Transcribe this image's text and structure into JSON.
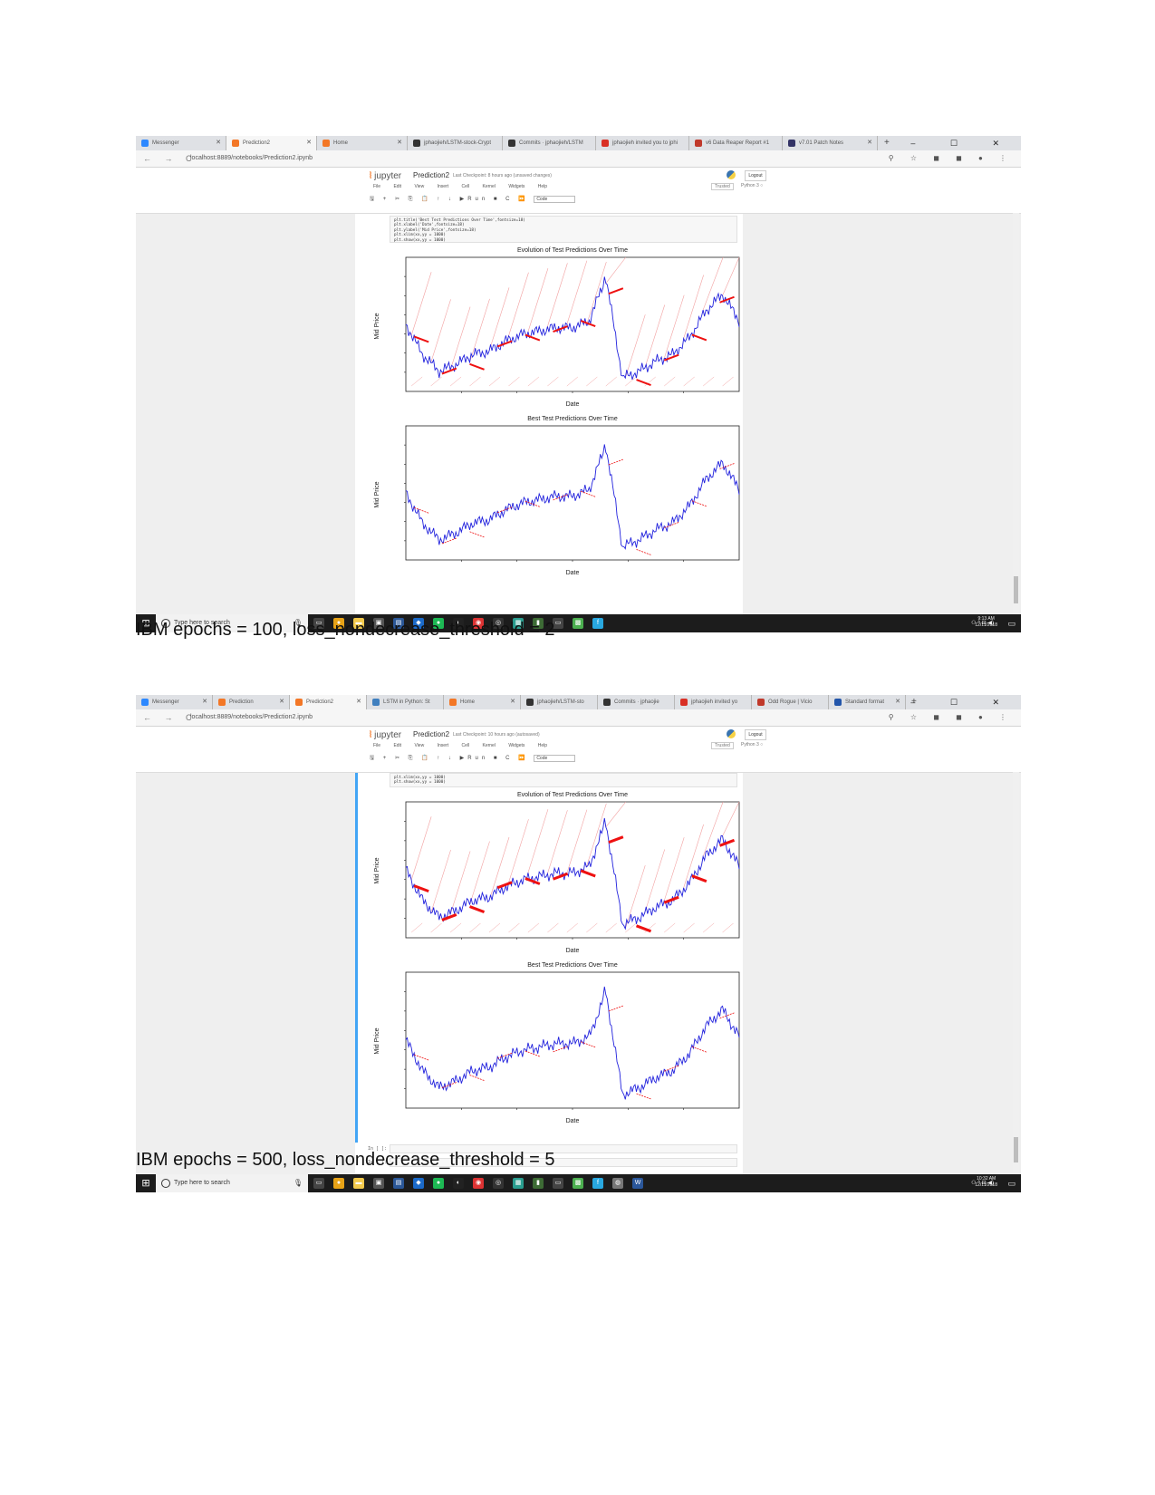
{
  "shot1": {
    "tabs": [
      {
        "label": "Messenger",
        "color": "#2d88ff"
      },
      {
        "label": "Prediction2",
        "color": "#f37726",
        "active": true
      },
      {
        "label": "Home",
        "color": "#f37726"
      },
      {
        "label": "jphaojieh/LSTM-stock-Crypt",
        "color": "#333333"
      },
      {
        "label": "Commits · jphaojieh/LSTM",
        "color": "#333333"
      },
      {
        "label": "jphaojieh invited you to jphi",
        "color": "#d93025"
      },
      {
        "label": "v6 Data Reaper Report #1",
        "color": "#c0392b"
      },
      {
        "label": "v7.01 Patch Notes",
        "color": "#333366"
      }
    ],
    "new_tab": "+",
    "window_controls": "–  ☐  ✕",
    "nav": "← → C",
    "url": "localhost:8889/notebooks/Prediction2.ipynb",
    "extensions": "⚲ ☆ ◼ ◼ ● ⋮",
    "logo": "jupyter",
    "notebook_title": "Prediction2",
    "checkpoint": "Last Checkpoint: 8 hours ago  (unsaved changes)",
    "logout": "Logout",
    "menu": "File Edit View Insert Cell Kernel Widgets Help",
    "trusted": "Trusted",
    "kernel": "Python 3 ○",
    "toolbar": "🖫 + ✂ ⎘ 📋 ↑ ↓ ▶Run ■ C ⏩",
    "cell_type": "Code",
    "code": "plt.title('Best Test Predictions Over Time',fontsize=18)\nplt.xlabel('Date',fontsize=18)\nplt.ylabel('Mid Price',fontsize=18)\nplt.xlim(xx,yy = 1000)\nplt.show(xx,yy = 1000)",
    "chart1_title": "Evolution of Test Predictions Over Time",
    "chart2_title": "Best Test Predictions Over Time",
    "xlabel": "Date",
    "ylabel": "Mid Price",
    "taskbar": {
      "search": "Type here to search",
      "time": "9:13 AM",
      "date": "12/11/2018"
    }
  },
  "caption1": "IBM epochs = 100, loss_nondecrease_threshold = 2",
  "shot2": {
    "tabs": [
      {
        "label": "Messenger",
        "color": "#2d88ff"
      },
      {
        "label": "Prediction",
        "color": "#f37726"
      },
      {
        "label": "Prediction2",
        "color": "#f37726",
        "active": true
      },
      {
        "label": "LSTM in Python: St",
        "color": "#3f7fbf"
      },
      {
        "label": "Home",
        "color": "#f37726"
      },
      {
        "label": "jphaojieh/LSTM-sto",
        "color": "#333333"
      },
      {
        "label": "Commits · jphaojie",
        "color": "#333333"
      },
      {
        "label": "jphaojieh invited yo",
        "color": "#d93025"
      },
      {
        "label": "Odd Rogue | Vicio",
        "color": "#c0392b"
      },
      {
        "label": "Standard format",
        "color": "#2255aa"
      }
    ],
    "new_tab": "+",
    "window_controls": "–  ☐  ✕",
    "nav": "← → C",
    "url": "localhost:8889/notebooks/Prediction2.ipynb",
    "extensions": "⚲ ☆ ◼ ◼ ● ⋮",
    "logo": "jupyter",
    "notebook_title": "Prediction2",
    "checkpoint": "Last Checkpoint: 10 hours ago  (autosaved)",
    "logout": "Logout",
    "menu": "File Edit View Insert Cell Kernel Widgets Help",
    "trusted": "Trusted",
    "kernel": "Python 3 ○",
    "toolbar": "🖫 + ✂ ⎘ 📋 ↑ ↓ ▶Run ■ C ⏩",
    "cell_type": "Code",
    "code": "plt.xlim(xx,yy = 1000)\nplt.show(xx,yy = 1000)",
    "chart1_title": "Evolution of Test Predictions Over Time",
    "chart2_title": "Best Test Predictions Over Time",
    "xlabel": "Date",
    "ylabel": "Mid Price",
    "empty_cell_prompt": "In [ ]:",
    "taskbar": {
      "search": "Type here to search",
      "time": "10:32 AM",
      "date": "12/11/2018"
    }
  },
  "caption2": "IBM epochs = 500, loss_nondecrease_threshold = 5",
  "colors": {
    "actual": "#2222dd",
    "prediction": "#ee1111",
    "faint_prediction": "#f2a0a0"
  },
  "chart_data": [
    {
      "type": "line",
      "title": "Evolution of Test Predictions Over Time",
      "xlabel": "Date",
      "ylabel": "Mid Price",
      "note": "IBM epochs = 100",
      "series": [
        {
          "name": "",
          "x": [
            0,
            25,
            50,
            75,
            100,
            125,
            150,
            175,
            200,
            225,
            250,
            275,
            300,
            325,
            350,
            375,
            400,
            425,
            450,
            475,
            500
          ],
          "values": [
            0.64,
            0.55,
            0.5,
            0.52,
            0.55,
            0.56,
            0.59,
            0.61,
            0.62,
            0.63,
            0.63,
            0.65,
            0.78,
            0.48,
            0.5,
            0.53,
            0.55,
            0.6,
            0.68,
            0.73,
            0.65
          ]
        }
      ]
    },
    {
      "type": "line",
      "title": "Best Test Predictions Over Time",
      "xlabel": "Date",
      "ylabel": "Mid Price",
      "note": "IBM epochs = 100",
      "series": [
        {
          "name": "",
          "x": [
            0,
            25,
            50,
            75,
            100,
            125,
            150,
            175,
            200,
            225,
            250,
            275,
            300,
            325,
            350,
            375,
            400,
            425,
            450,
            475,
            500
          ],
          "values": [
            0.64,
            0.55,
            0.5,
            0.52,
            0.55,
            0.56,
            0.59,
            0.61,
            0.62,
            0.63,
            0.63,
            0.65,
            0.78,
            0.48,
            0.5,
            0.53,
            0.55,
            0.6,
            0.68,
            0.73,
            0.65
          ]
        }
      ]
    },
    {
      "type": "line",
      "title": "Evolution of Test Predictions Over Time",
      "xlabel": "Date",
      "ylabel": "Mid Price",
      "note": "IBM epochs = 500",
      "series": [
        {
          "name": "",
          "x": [
            0,
            25,
            50,
            75,
            100,
            125,
            150,
            175,
            200,
            225,
            250,
            275,
            300,
            325,
            350,
            375,
            400,
            425,
            450,
            475,
            500
          ],
          "values": [
            0.64,
            0.55,
            0.5,
            0.52,
            0.55,
            0.56,
            0.59,
            0.61,
            0.62,
            0.63,
            0.63,
            0.65,
            0.78,
            0.48,
            0.5,
            0.53,
            0.55,
            0.6,
            0.68,
            0.73,
            0.65
          ]
        }
      ]
    },
    {
      "type": "line",
      "title": "Best Test Predictions Over Time",
      "xlabel": "Date",
      "ylabel": "Mid Price",
      "note": "IBM epochs = 500",
      "series": [
        {
          "name": "",
          "x": [
            0,
            25,
            50,
            75,
            100,
            125,
            150,
            175,
            200,
            225,
            250,
            275,
            300,
            325,
            350,
            375,
            400,
            425,
            450,
            475,
            500
          ],
          "values": [
            0.64,
            0.55,
            0.5,
            0.52,
            0.55,
            0.56,
            0.59,
            0.61,
            0.62,
            0.63,
            0.63,
            0.65,
            0.78,
            0.48,
            0.5,
            0.53,
            0.55,
            0.6,
            0.68,
            0.73,
            0.65
          ]
        }
      ]
    }
  ]
}
